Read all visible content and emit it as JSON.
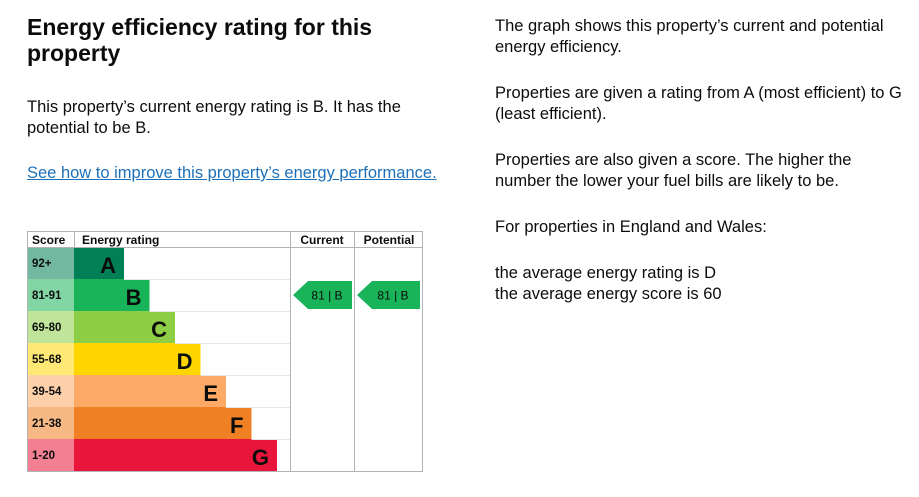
{
  "heading": "Energy efficiency rating for this property",
  "current_text": "This property’s current energy rating is B. It has the potential to be B.",
  "improve_link": "See how to improve this property’s energy performance.",
  "info": {
    "graph_text": "The graph shows this property’s current and potential energy efficiency.",
    "ratings_text": "Properties are given a rating from A (most efficient) to G (least efficient).",
    "score_text": "Properties are also given a score. The higher the number the lower your fuel bills are likely to be.",
    "region_text": "For properties in England and Wales:",
    "avg_rating_text": "the average energy rating is D",
    "avg_score_text": "the average energy score is 60"
  },
  "chart_data": {
    "type": "table",
    "headers": {
      "score": "Score",
      "rating": "Energy rating",
      "current": "Current",
      "potential": "Potential"
    },
    "bands": [
      {
        "letter": "A",
        "range": "92+",
        "color": "#008054"
      },
      {
        "letter": "B",
        "range": "81-91",
        "color": "#19b459"
      },
      {
        "letter": "C",
        "range": "69-80",
        "color": "#8dce46"
      },
      {
        "letter": "D",
        "range": "55-68",
        "color": "#ffd500"
      },
      {
        "letter": "E",
        "range": "39-54",
        "color": "#fcaa65"
      },
      {
        "letter": "F",
        "range": "21-38",
        "color": "#ef8023"
      },
      {
        "letter": "G",
        "range": "1-20",
        "color": "#e9153b"
      }
    ],
    "current": {
      "score": 81,
      "letter": "B",
      "label": "81 | B",
      "color": "#19b459"
    },
    "potential": {
      "score": 81,
      "letter": "B",
      "label": "81 | B",
      "color": "#19b459"
    }
  }
}
